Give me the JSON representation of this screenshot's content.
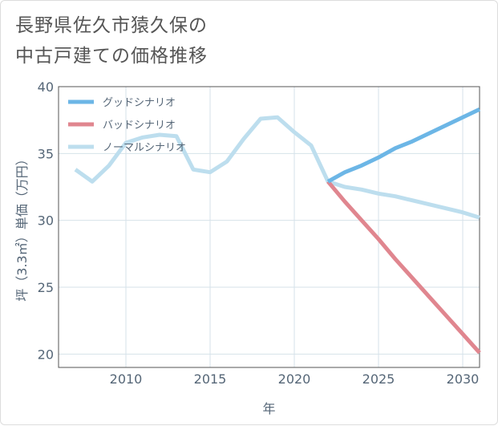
{
  "title": "長野県佐久市猿久保の\n中古戸建ての価格推移",
  "chart_data": {
    "type": "line",
    "title": "長野県佐久市猿久保の中古戸建ての価格推移",
    "xlabel": "年",
    "ylabel": "坪（3.3㎡）単価（万円）",
    "xlim": [
      2006,
      2031
    ],
    "ylim": [
      19,
      40
    ],
    "x_ticks": [
      2010,
      2015,
      2020,
      2025,
      2030
    ],
    "y_ticks": [
      20,
      25,
      30,
      35,
      40
    ],
    "grid": true,
    "legend_position": "top-left",
    "series": [
      {
        "name": "グッドシナリオ",
        "color": "#6cb6e6",
        "x": [
          2022,
          2023,
          2024,
          2025,
          2026,
          2027,
          2028,
          2029,
          2030,
          2031
        ],
        "values": [
          32.9,
          33.6,
          34.1,
          34.7,
          35.4,
          35.9,
          36.5,
          37.1,
          37.7,
          38.3
        ]
      },
      {
        "name": "バッドシナリオ",
        "color": "#e0868f",
        "x": [
          2022,
          2023,
          2024,
          2025,
          2026,
          2027,
          2028,
          2029,
          2030,
          2031
        ],
        "values": [
          32.9,
          31.4,
          30.0,
          28.6,
          27.1,
          25.7,
          24.3,
          22.9,
          21.5,
          20.1
        ]
      },
      {
        "name": "ノーマルシナリオ",
        "color": "#bddeee",
        "x": [
          2007,
          2008,
          2009,
          2010,
          2011,
          2012,
          2013,
          2014,
          2015,
          2016,
          2017,
          2018,
          2019,
          2020,
          2021,
          2022,
          2023,
          2024,
          2025,
          2026,
          2027,
          2028,
          2029,
          2030,
          2031
        ],
        "values": [
          33.8,
          32.9,
          34.1,
          35.8,
          36.2,
          36.4,
          36.3,
          33.8,
          33.6,
          34.4,
          36.1,
          37.6,
          37.7,
          36.6,
          35.6,
          32.9,
          32.5,
          32.3,
          32.0,
          31.8,
          31.5,
          31.2,
          30.9,
          30.6,
          30.2
        ]
      }
    ]
  }
}
